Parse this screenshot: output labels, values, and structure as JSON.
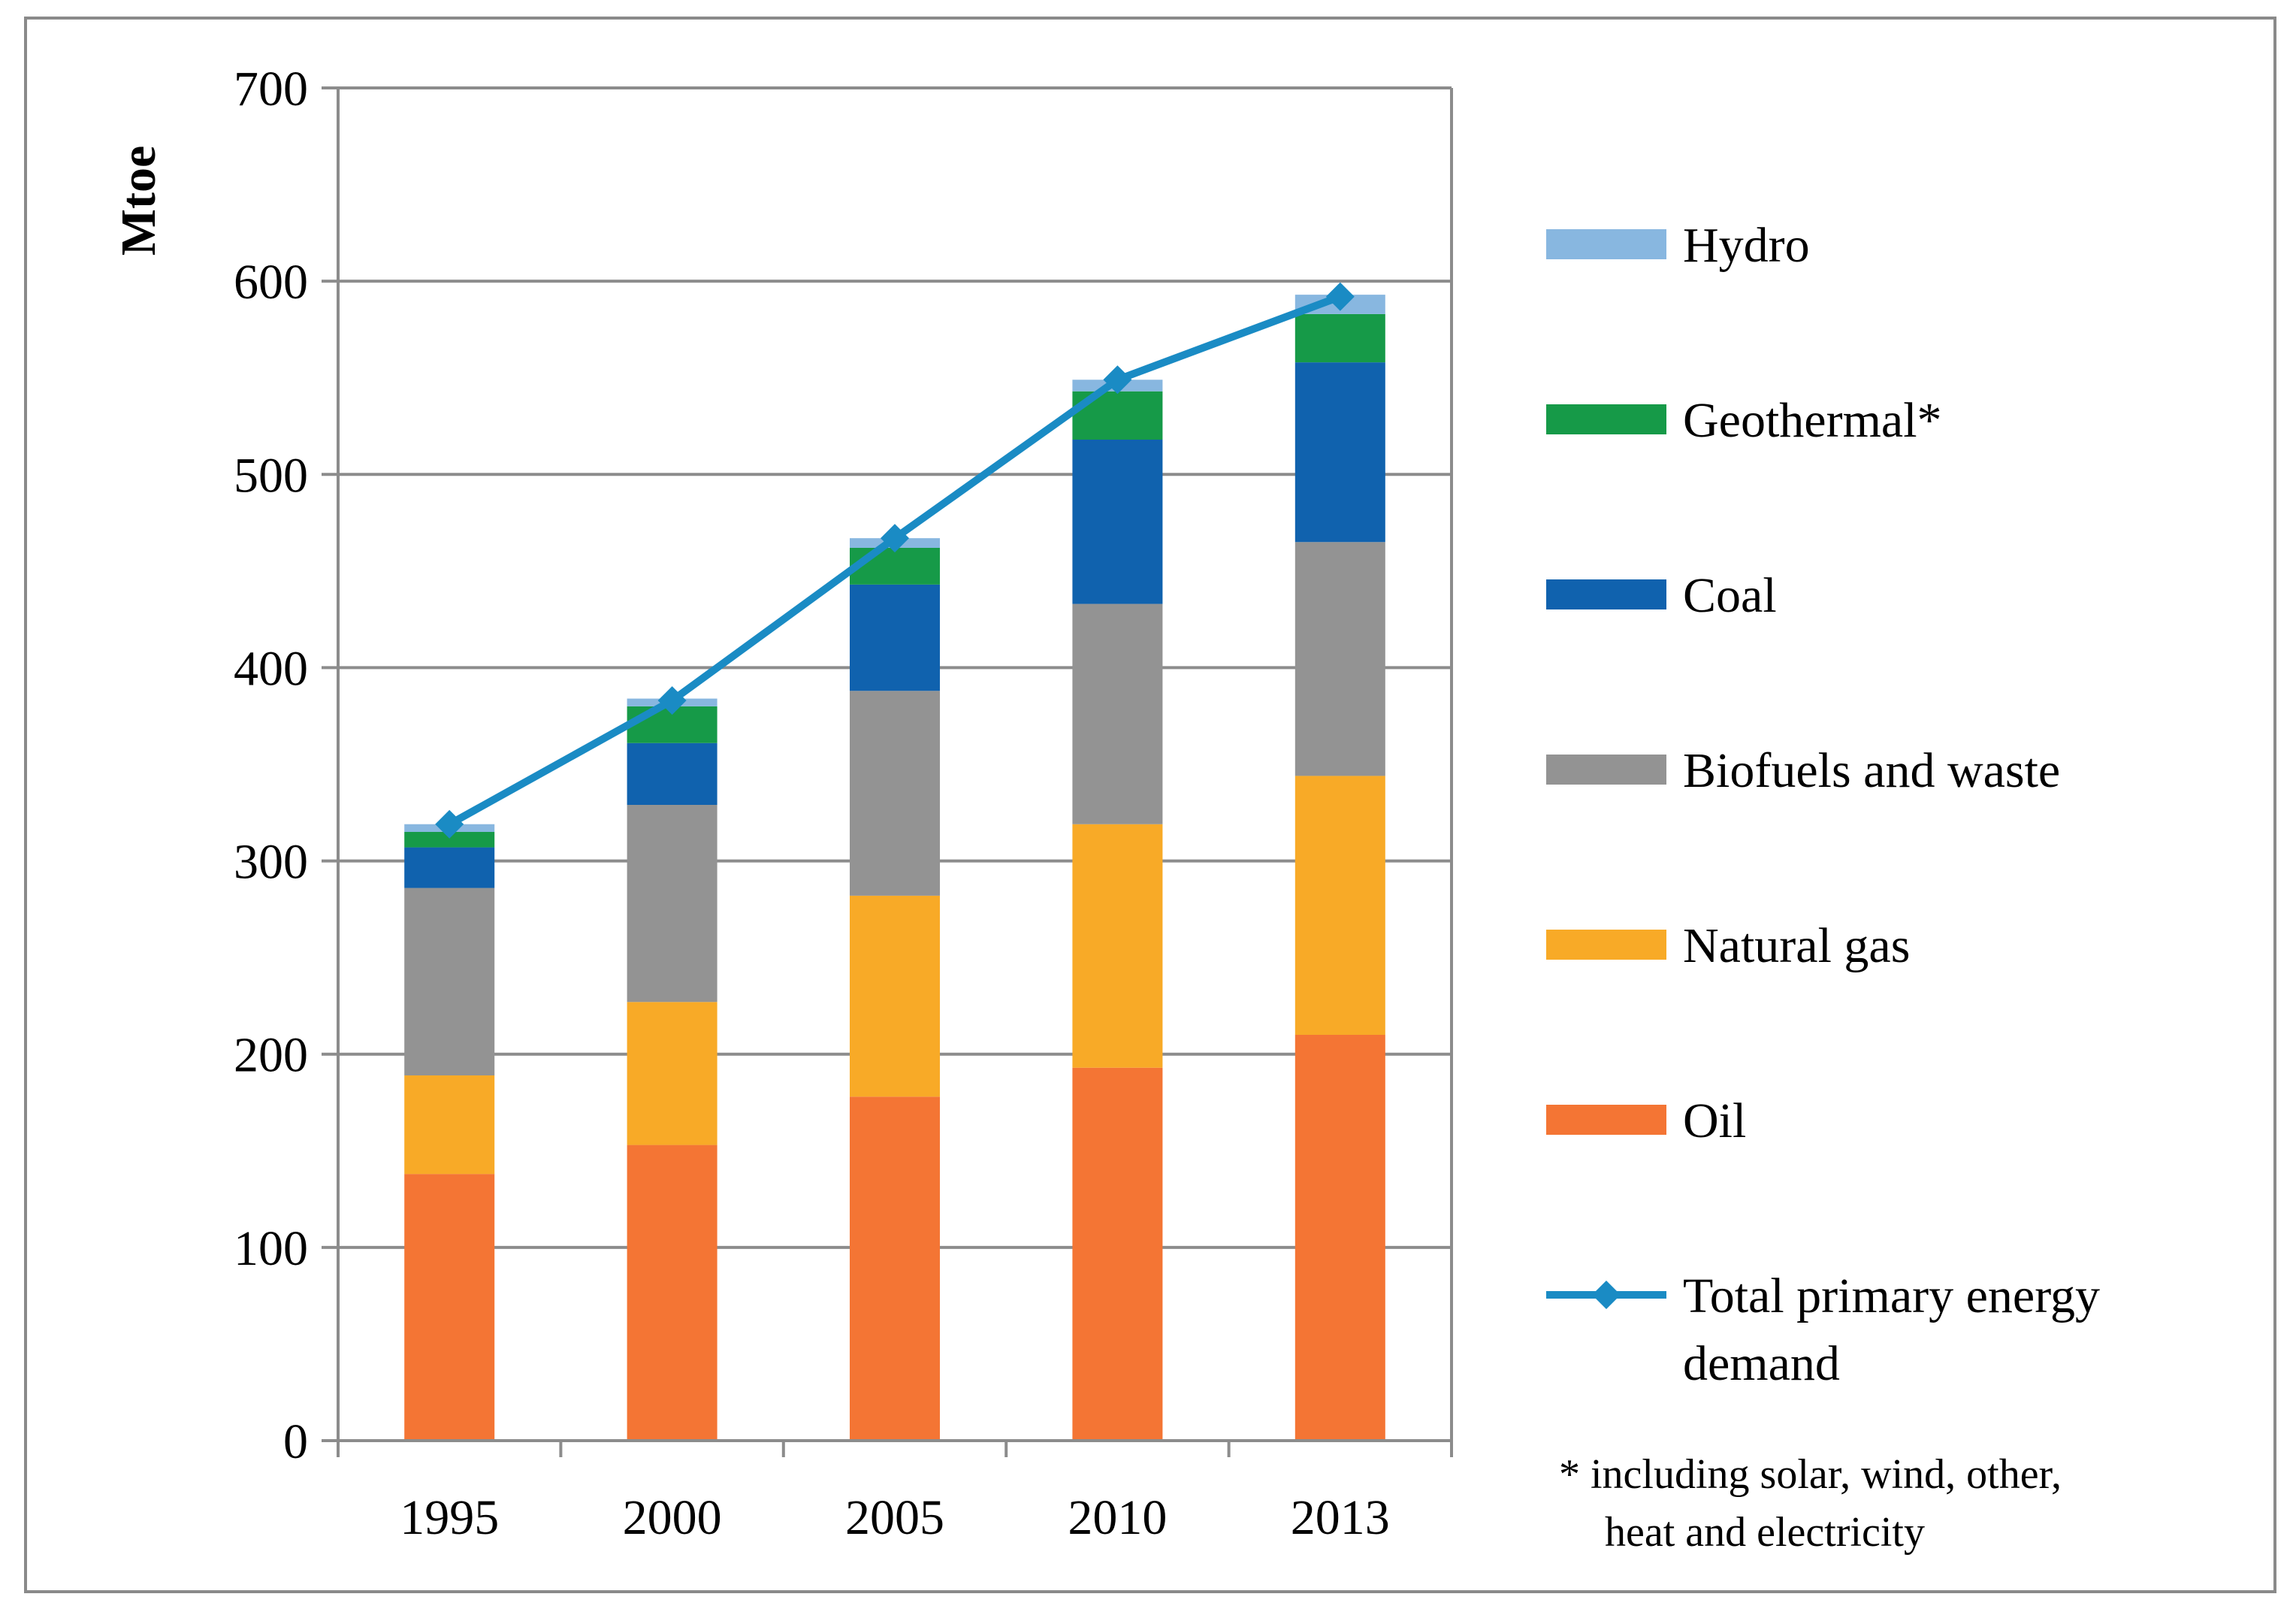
{
  "chart_data": {
    "type": "stacked-bar-with-line",
    "title": "",
    "xlabel": "",
    "ylabel": "Mtoe",
    "ylim": [
      0,
      700
    ],
    "yticks": [
      "0",
      "100",
      "200",
      "300",
      "400",
      "500",
      "600",
      "700"
    ],
    "grid": true,
    "legend_position": "right",
    "categories": [
      "1995",
      "2000",
      "2005",
      "2010",
      "2013"
    ],
    "series": [
      {
        "name": "Oil",
        "color": "#F47534",
        "values": [
          138,
          153,
          178,
          193,
          210
        ]
      },
      {
        "name": "Natural gas",
        "color": "#F8AA27",
        "values": [
          51,
          74,
          104,
          126,
          134
        ]
      },
      {
        "name": "Biofuels and waste",
        "color": "#939393",
        "values": [
          97,
          102,
          106,
          114,
          121
        ]
      },
      {
        "name": "Coal",
        "color": "#1062AE",
        "values": [
          21,
          32,
          55,
          85,
          93
        ]
      },
      {
        "name": "Geothermal*",
        "color": "#169A48",
        "values": [
          8,
          19,
          19,
          25,
          25
        ]
      },
      {
        "name": "Hydro",
        "color": "#88B7E0",
        "values": [
          4,
          4,
          5,
          6,
          10
        ]
      }
    ],
    "line_series": {
      "name": "Total primary energy demand",
      "line_label_1": "Total primary energy",
      "line_label_2": "demand",
      "color": "#1A8BC4",
      "values": [
        319,
        383,
        467,
        549,
        592
      ]
    },
    "legend_order": [
      "Hydro",
      "Geothermal*",
      "Coal",
      "Biofuels and waste",
      "Natural gas",
      "Oil"
    ],
    "footnote": {
      "line1": "* including  solar, wind, other,",
      "line2": "heat and electricity"
    }
  }
}
